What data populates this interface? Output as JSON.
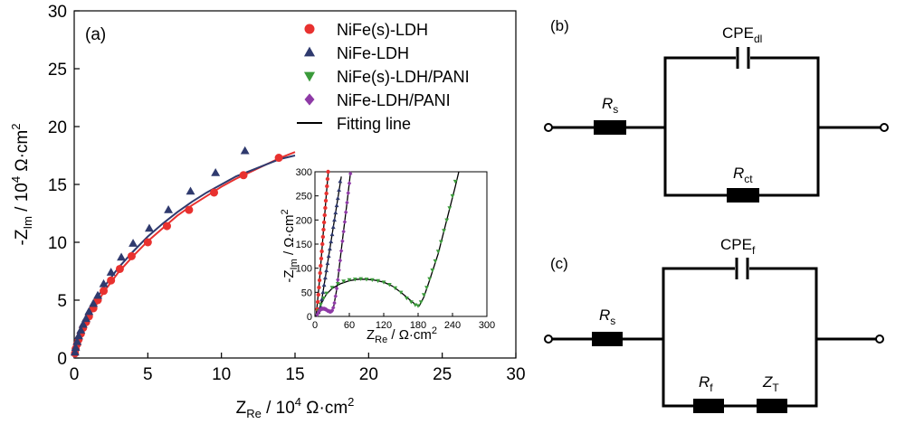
{
  "chart_data": {
    "type": "scatter",
    "panel_label": "(a)",
    "main": {
      "xlabel": {
        "main": "Z",
        "sub": "Re",
        "unit_pre": " / 10",
        "unit_sup": "4",
        "unit_post": " Ω·cm",
        "unit_sup2": "2"
      },
      "ylabel": {
        "main": "-Z",
        "sub": "Im",
        "unit_pre": " / 10",
        "unit_sup": "4",
        "unit_post": " Ω·cm",
        "unit_sup2": "2"
      },
      "xlim": [
        0,
        30
      ],
      "ylim": [
        0,
        30
      ],
      "xticks": [
        "0",
        "5",
        "10",
        "15",
        "20",
        "25",
        "30"
      ],
      "yticks": [
        "0",
        "5",
        "10",
        "15",
        "20",
        "25",
        "30"
      ],
      "series": [
        {
          "name": "NiFe(s)-LDH",
          "marker": "circle",
          "color": "#e8312f",
          "x": [
            0.05,
            0.1,
            0.2,
            0.3,
            0.45,
            0.6,
            0.8,
            1.0,
            1.3,
            1.6,
            2.0,
            2.5,
            3.1,
            3.9,
            5.0,
            6.3,
            7.8,
            9.5,
            11.5,
            13.9
          ],
          "y": [
            0.4,
            0.8,
            1.2,
            1.6,
            2.1,
            2.6,
            3.1,
            3.6,
            4.3,
            5.0,
            5.8,
            6.7,
            7.7,
            8.8,
            10.0,
            11.4,
            12.8,
            14.3,
            15.8,
            17.3
          ]
        },
        {
          "name": "NiFe-LDH",
          "marker": "triangle",
          "color": "#2f3a6e",
          "x": [
            0.05,
            0.1,
            0.2,
            0.3,
            0.45,
            0.6,
            0.8,
            1.0,
            1.3,
            1.6,
            2.0,
            2.5,
            3.2,
            4.0,
            5.1,
            6.4,
            7.9,
            9.6,
            11.6
          ],
          "y": [
            0.5,
            0.9,
            1.4,
            1.9,
            2.4,
            2.9,
            3.4,
            4.0,
            4.7,
            5.4,
            6.4,
            7.4,
            8.7,
            9.9,
            11.2,
            12.8,
            14.4,
            16.0,
            17.9
          ]
        }
      ],
      "fits": [
        {
          "name": "fit-NiFe(s)-LDH",
          "color": "#e8312f",
          "x": [
            0,
            0.1,
            0.3,
            0.6,
            1.0,
            1.5,
            2.0,
            3.0,
            4.0,
            5.0,
            6.0,
            7.0,
            8.0,
            9.0,
            10.0,
            11.0,
            12.0,
            13.0,
            14.0,
            15.0
          ],
          "y": [
            0,
            0.8,
            1.7,
            2.6,
            3.6,
            4.6,
            5.7,
            7.4,
            8.8,
            10.1,
            11.2,
            12.3,
            13.2,
            14.0,
            14.8,
            15.5,
            16.1,
            16.7,
            17.3,
            17.8
          ]
        },
        {
          "name": "fit-NiFe-LDH",
          "color": "#2f3a6e",
          "x": [
            0,
            0.1,
            0.3,
            0.6,
            1.0,
            1.5,
            2.0,
            3.0,
            4.0,
            5.0,
            6.0,
            7.0,
            8.0,
            9.0,
            10.0,
            11.0,
            12.0,
            13.0,
            14.0,
            15.0
          ],
          "y": [
            0,
            0.9,
            1.9,
            2.9,
            4.0,
            5.1,
            6.1,
            7.8,
            9.2,
            10.5,
            11.6,
            12.6,
            13.5,
            14.3,
            15.0,
            15.7,
            16.2,
            16.7,
            17.2,
            17.5
          ]
        }
      ],
      "legend": [
        {
          "label": "NiFe(s)-LDH",
          "marker": "circle",
          "color": "#e8312f"
        },
        {
          "label": "NiFe-LDH",
          "marker": "triangle",
          "color": "#2f3a6e"
        },
        {
          "label": "NiFe(s)-LDH/PANI",
          "marker": "triangle-down",
          "color": "#3a9a3a"
        },
        {
          "label": "NiFe-LDH/PANI",
          "marker": "diamond",
          "color": "#8e3aa6"
        },
        {
          "label": "Fitting line",
          "marker": "line",
          "color": "#000000"
        }
      ],
      "legend_position": "top-right"
    },
    "inset": {
      "xlabel": {
        "main": "Z",
        "sub": "Re",
        "unit": " / Ω·cm",
        "unit_sup": "2"
      },
      "ylabel": {
        "main": "-Z",
        "sub": "Im",
        "unit": " / Ω·cm",
        "unit_sup": "2"
      },
      "xlim": [
        0,
        300
      ],
      "ylim": [
        0,
        300
      ],
      "xticks": [
        "0",
        "60",
        "120",
        "180",
        "240",
        "300"
      ],
      "yticks": [
        "0",
        "50",
        "100",
        "150",
        "200",
        "250",
        "300"
      ],
      "series": [
        {
          "name": "NiFe(s)-LDH",
          "marker": "circle",
          "color": "#e8312f",
          "x": [
            4,
            5,
            6,
            7,
            8,
            9,
            10,
            11,
            12,
            13,
            14,
            15,
            16,
            17,
            18,
            19,
            20,
            21,
            22,
            23
          ],
          "y": [
            15,
            30,
            45,
            60,
            75,
            90,
            105,
            120,
            135,
            150,
            165,
            180,
            195,
            210,
            225,
            240,
            255,
            270,
            285,
            300
          ]
        },
        {
          "name": "NiFe-LDH",
          "marker": "triangle",
          "color": "#2f3a6e",
          "x": [
            10,
            12,
            14,
            16,
            18,
            20,
            22,
            24,
            26,
            28,
            30,
            32,
            34,
            36,
            38,
            40,
            42,
            44
          ],
          "y": [
            20,
            35,
            50,
            65,
            80,
            95,
            110,
            125,
            140,
            155,
            170,
            185,
            200,
            215,
            230,
            245,
            262,
            280
          ]
        },
        {
          "name": "NiFe(s)-LDH/PANI",
          "marker": "triangle-down",
          "color": "#3a9a3a",
          "x": [
            6,
            10,
            15,
            20,
            30,
            40,
            50,
            60,
            70,
            80,
            90,
            100,
            110,
            120,
            130,
            140,
            150,
            160,
            168,
            175,
            180,
            185,
            190,
            195,
            200,
            205,
            210,
            215,
            220,
            225,
            230,
            235,
            240,
            245
          ],
          "y": [
            12,
            25,
            38,
            48,
            60,
            68,
            73,
            76,
            77,
            78,
            77,
            76,
            74,
            71,
            66,
            59,
            50,
            38,
            30,
            24,
            22,
            30,
            45,
            60,
            78,
            96,
            115,
            135,
            155,
            178,
            200,
            225,
            250,
            280
          ]
        },
        {
          "name": "NiFe-LDH/PANI",
          "marker": "diamond",
          "color": "#8e3aa6",
          "x": [
            4,
            6,
            8,
            10,
            12,
            14,
            16,
            18,
            20,
            22,
            24,
            26,
            28,
            30,
            32,
            34,
            36,
            38,
            40,
            42,
            44,
            46,
            48,
            50,
            52,
            54,
            56,
            58,
            60,
            62
          ],
          "y": [
            4,
            8,
            12,
            14,
            16,
            16,
            16,
            15,
            14,
            12,
            11,
            10,
            10,
            12,
            18,
            28,
            42,
            58,
            76,
            96,
            116,
            136,
            156,
            176,
            196,
            216,
            236,
            256,
            276,
            296
          ]
        }
      ],
      "fits": [
        {
          "name": "fit-NiFe(s)-LDH-inset",
          "color": "#000",
          "x": [
            2,
            8,
            14,
            20,
            24
          ],
          "y": [
            0,
            75,
            165,
            255,
            310
          ]
        },
        {
          "name": "fit-NiFe-LDH-inset",
          "color": "#000",
          "x": [
            8,
            16,
            24,
            32,
            40,
            46
          ],
          "y": [
            5,
            65,
            125,
            185,
            245,
            290
          ]
        },
        {
          "name": "fit-NiFe(s)-LDH/PANI-inset",
          "color": "#000",
          "x": [
            3,
            10,
            20,
            30,
            45,
            60,
            75,
            90,
            105,
            120,
            135,
            150,
            165,
            175,
            182,
            190,
            200,
            215,
            230,
            245,
            252
          ],
          "y": [
            0,
            25,
            46,
            58,
            68,
            74,
            77,
            77,
            75,
            71,
            63,
            50,
            35,
            25,
            22,
            40,
            75,
            130,
            200,
            270,
            305
          ]
        },
        {
          "name": "fit-NiFe-LDH/PANI-inset",
          "color": "#000",
          "x": [
            2,
            6,
            10,
            16,
            22,
            28,
            32,
            38,
            44,
            50,
            56,
            62
          ],
          "y": [
            0,
            9,
            14,
            16,
            12,
            10,
            16,
            56,
            118,
            178,
            236,
            298
          ]
        }
      ]
    }
  },
  "circuit_b": {
    "label": "(b)",
    "cpe": {
      "main": "CPE",
      "sub": "dl"
    },
    "rs": {
      "main": "R",
      "sub": "s"
    },
    "rct": {
      "main": "R",
      "sub": "ct"
    }
  },
  "circuit_c": {
    "label": "(c)",
    "cpe": {
      "main": "CPE",
      "sub": "f"
    },
    "rs": {
      "main": "R",
      "sub": "s"
    },
    "rf": {
      "main": "R",
      "sub": "f"
    },
    "zt": {
      "main": "Z",
      "sub": "T"
    }
  }
}
